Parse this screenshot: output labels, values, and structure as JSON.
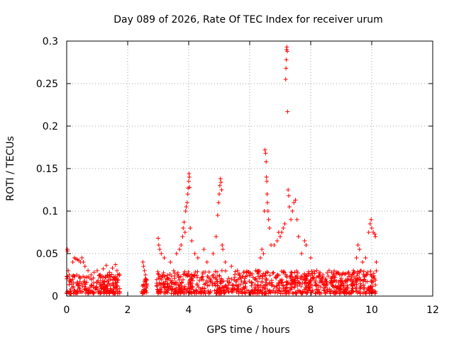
{
  "chart_data": {
    "type": "scatter",
    "title": "Day 089 of 2026, Rate Of TEC Index for receiver urum",
    "xlabel": "GPS time / hours",
    "ylabel": "ROTI / TECUs",
    "xlim": [
      0,
      12
    ],
    "ylim": [
      0,
      0.3
    ],
    "xticks": [
      0,
      2,
      4,
      6,
      8,
      10,
      12
    ],
    "yticks": [
      0,
      0.05,
      0.1,
      0.15,
      0.2,
      0.25,
      0.3
    ],
    "xtick_labels": [
      "0",
      "2",
      "4",
      "6",
      "8",
      "10",
      "12"
    ],
    "ytick_labels": [
      "0",
      "0.05",
      "0.1",
      "0.15",
      "0.2",
      "0.25",
      "0.3"
    ],
    "grid": true,
    "marker": "+",
    "marker_color": "#ff0000",
    "series": [
      {
        "name": "ROTI",
        "points": [
          [
            0.02,
            0.055
          ],
          [
            0.03,
            0.053
          ],
          [
            0.05,
            0.03
          ],
          [
            0.08,
            0.025
          ],
          [
            0.1,
            0.02
          ],
          [
            0.15,
            0.018
          ],
          [
            0.2,
            0.04
          ],
          [
            0.25,
            0.045
          ],
          [
            0.3,
            0.044
          ],
          [
            0.35,
            0.043
          ],
          [
            0.4,
            0.042
          ],
          [
            0.45,
            0.04
          ],
          [
            0.5,
            0.045
          ],
          [
            0.55,
            0.04
          ],
          [
            0.6,
            0.035
          ],
          [
            0.7,
            0.03
          ],
          [
            0.8,
            0.025
          ],
          [
            0.9,
            0.028
          ],
          [
            1.0,
            0.03
          ],
          [
            1.1,
            0.025
          ],
          [
            1.2,
            0.032
          ],
          [
            1.3,
            0.036
          ],
          [
            1.4,
            0.028
          ],
          [
            1.5,
            0.033
          ],
          [
            1.6,
            0.037
          ],
          [
            1.65,
            0.03
          ],
          [
            2.5,
            0.04
          ],
          [
            2.52,
            0.035
          ],
          [
            2.55,
            0.03
          ],
          [
            2.58,
            0.025
          ],
          [
            2.6,
            0.02
          ],
          [
            2.55,
            0.005
          ],
          [
            3.0,
            0.068
          ],
          [
            3.02,
            0.06
          ],
          [
            3.05,
            0.055
          ],
          [
            3.1,
            0.05
          ],
          [
            3.2,
            0.045
          ],
          [
            3.4,
            0.04
          ],
          [
            3.6,
            0.05
          ],
          [
            3.7,
            0.055
          ],
          [
            3.75,
            0.06
          ],
          [
            3.8,
            0.07
          ],
          [
            3.82,
            0.08
          ],
          [
            3.85,
            0.087
          ],
          [
            3.88,
            0.075
          ],
          [
            3.9,
            0.1
          ],
          [
            3.92,
            0.105
          ],
          [
            3.95,
            0.11
          ],
          [
            3.97,
            0.12
          ],
          [
            3.98,
            0.127
          ],
          [
            4.0,
            0.135
          ],
          [
            4.01,
            0.144
          ],
          [
            4.02,
            0.14
          ],
          [
            4.03,
            0.128
          ],
          [
            4.05,
            0.08
          ],
          [
            4.1,
            0.065
          ],
          [
            4.2,
            0.05
          ],
          [
            4.3,
            0.045
          ],
          [
            4.5,
            0.055
          ],
          [
            4.6,
            0.04
          ],
          [
            4.8,
            0.05
          ],
          [
            4.9,
            0.07
          ],
          [
            4.95,
            0.095
          ],
          [
            4.98,
            0.11
          ],
          [
            5.0,
            0.12
          ],
          [
            5.02,
            0.13
          ],
          [
            5.04,
            0.138
          ],
          [
            5.06,
            0.134
          ],
          [
            5.08,
            0.125
          ],
          [
            5.1,
            0.06
          ],
          [
            5.12,
            0.055
          ],
          [
            5.2,
            0.04
          ],
          [
            5.4,
            0.035
          ],
          [
            5.6,
            0.03
          ],
          [
            5.8,
            0.028
          ],
          [
            6.0,
            0.025
          ],
          [
            6.2,
            0.03
          ],
          [
            6.35,
            0.045
          ],
          [
            6.4,
            0.055
          ],
          [
            6.45,
            0.05
          ],
          [
            6.48,
            0.1
          ],
          [
            6.5,
            0.172
          ],
          [
            6.52,
            0.168
          ],
          [
            6.54,
            0.158
          ],
          [
            6.55,
            0.14
          ],
          [
            6.56,
            0.135
          ],
          [
            6.57,
            0.12
          ],
          [
            6.58,
            0.11
          ],
          [
            6.6,
            0.1
          ],
          [
            6.62,
            0.09
          ],
          [
            6.65,
            0.08
          ],
          [
            6.7,
            0.06
          ],
          [
            6.8,
            0.06
          ],
          [
            6.9,
            0.065
          ],
          [
            6.95,
            0.075
          ],
          [
            7.0,
            0.07
          ],
          [
            7.05,
            0.075
          ],
          [
            7.1,
            0.08
          ],
          [
            7.15,
            0.085
          ],
          [
            7.18,
            0.255
          ],
          [
            7.19,
            0.268
          ],
          [
            7.2,
            0.278
          ],
          [
            7.21,
            0.29
          ],
          [
            7.22,
            0.293
          ],
          [
            7.23,
            0.288
          ],
          [
            7.24,
            0.217
          ],
          [
            7.26,
            0.125
          ],
          [
            7.28,
            0.118
          ],
          [
            7.3,
            0.105
          ],
          [
            7.35,
            0.09
          ],
          [
            7.4,
            0.1
          ],
          [
            7.45,
            0.11
          ],
          [
            7.5,
            0.113
          ],
          [
            7.55,
            0.09
          ],
          [
            7.6,
            0.07
          ],
          [
            7.7,
            0.05
          ],
          [
            7.8,
            0.065
          ],
          [
            7.85,
            0.06
          ],
          [
            8.0,
            0.045
          ],
          [
            8.2,
            0.03
          ],
          [
            8.4,
            0.025
          ],
          [
            8.6,
            0.03
          ],
          [
            8.8,
            0.022
          ],
          [
            9.0,
            0.025
          ],
          [
            9.2,
            0.02
          ],
          [
            9.4,
            0.03
          ],
          [
            9.5,
            0.045
          ],
          [
            9.55,
            0.06
          ],
          [
            9.6,
            0.055
          ],
          [
            9.7,
            0.04
          ],
          [
            9.8,
            0.045
          ],
          [
            9.9,
            0.075
          ],
          [
            9.95,
            0.085
          ],
          [
            9.98,
            0.09
          ],
          [
            10.0,
            0.08
          ],
          [
            10.05,
            0.075
          ],
          [
            10.1,
            0.073
          ],
          [
            10.12,
            0.07
          ],
          [
            10.15,
            0.04
          ]
        ],
        "dense_bands": [
          {
            "x_start": 0.0,
            "x_end": 1.75,
            "y_low": 0.003,
            "y_high": 0.026,
            "count": 230
          },
          {
            "x_start": 2.45,
            "x_end": 2.65,
            "y_low": 0.003,
            "y_high": 0.025,
            "count": 30
          },
          {
            "x_start": 2.95,
            "x_end": 10.15,
            "y_low": 0.003,
            "y_high": 0.03,
            "count": 950
          }
        ]
      }
    ]
  }
}
